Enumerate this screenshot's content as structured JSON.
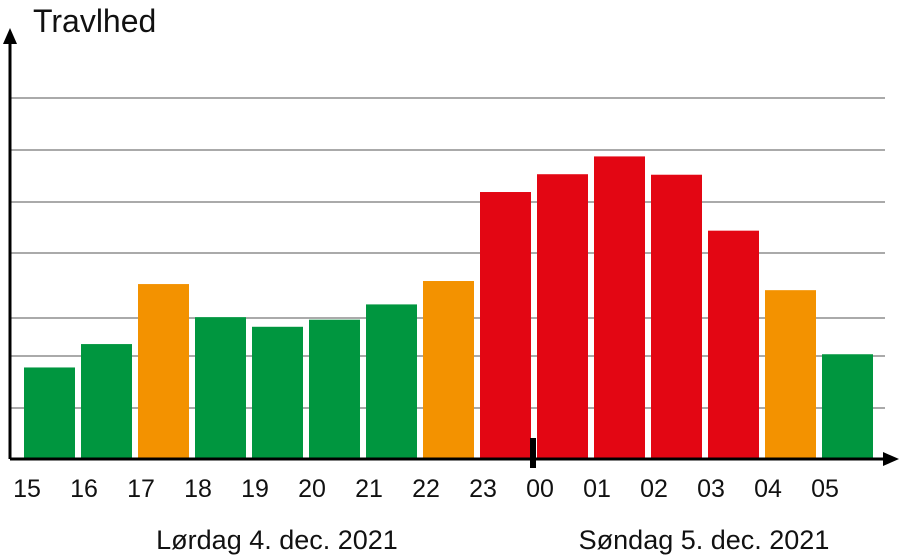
{
  "chart_data": {
    "type": "bar",
    "ylabel": "Travlhed",
    "categories": [
      "15",
      "16",
      "17",
      "18",
      "19",
      "20",
      "21",
      "22",
      "23",
      "00",
      "01",
      "02",
      "03",
      "04",
      "05"
    ],
    "values": [
      18,
      22.6,
      34.4,
      27.9,
      26,
      27.4,
      30.4,
      35,
      52.5,
      56,
      59.5,
      55.9,
      44.9,
      33.2,
      20.6
    ],
    "bar_colors": [
      "#00963f",
      "#00963f",
      "#f39200",
      "#00963f",
      "#00963f",
      "#00963f",
      "#00963f",
      "#f39200",
      "#e30613",
      "#e30613",
      "#e30613",
      "#e30613",
      "#e30613",
      "#f39200",
      "#00963f"
    ],
    "ylim": [
      0,
      82
    ],
    "grid": true,
    "day_labels": [
      "Lørdag 4. dec. 2021",
      "Søndag 5. dec. 2021"
    ]
  }
}
